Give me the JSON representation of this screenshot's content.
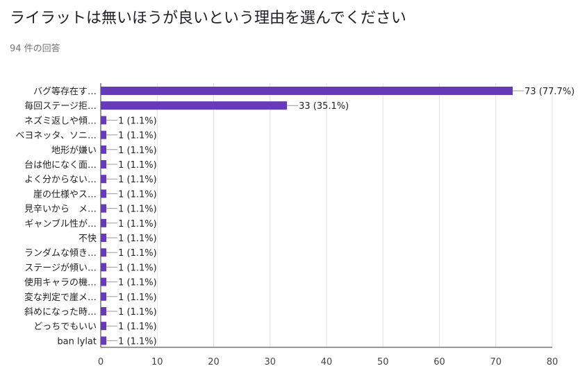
{
  "header": {
    "title": "ライラットは無いほうが良いという理由を選んでください",
    "response_count": "94 件の回答"
  },
  "colors": {
    "bar": "#673ab7",
    "grid": "#e0e0e0",
    "axis": "#333333",
    "leader": "#999999"
  },
  "chart_data": {
    "type": "bar",
    "orientation": "horizontal",
    "categories": [
      "バグ等存在す…",
      "毎回ステージ拒…",
      "ネズミ返しや傾…",
      "ベヨネッタ、ソニ…",
      "地形が嫌い",
      "台は他になく面…",
      "よく分からない…",
      "崖の仕様やス…",
      "見辛いから　メ…",
      "ギャンブル性が…",
      "不快",
      "ランダムな傾き…",
      "ステージが傾い…",
      "使用キャラの機…",
      "変な判定で崖メ…",
      "斜めになった時…",
      "どっちでもいい",
      "ban lylat"
    ],
    "values": [
      73,
      33,
      1,
      1,
      1,
      1,
      1,
      1,
      1,
      1,
      1,
      1,
      1,
      1,
      1,
      1,
      1,
      1
    ],
    "labels": [
      "73 (77.7%)",
      "33 (35.1%)",
      "1 (1.1%)",
      "1 (1.1%)",
      "1 (1.1%)",
      "1 (1.1%)",
      "1 (1.1%)",
      "1 (1.1%)",
      "1 (1.1%)",
      "1 (1.1%)",
      "1 (1.1%)",
      "1 (1.1%)",
      "1 (1.1%)",
      "1 (1.1%)",
      "1 (1.1%)",
      "1 (1.1%)",
      "1 (1.1%)",
      "1 (1.1%)"
    ],
    "xlim": [
      0,
      80
    ],
    "xticks": [
      "0",
      "10",
      "20",
      "30",
      "40",
      "50",
      "60",
      "70",
      "80"
    ],
    "grid": true
  }
}
